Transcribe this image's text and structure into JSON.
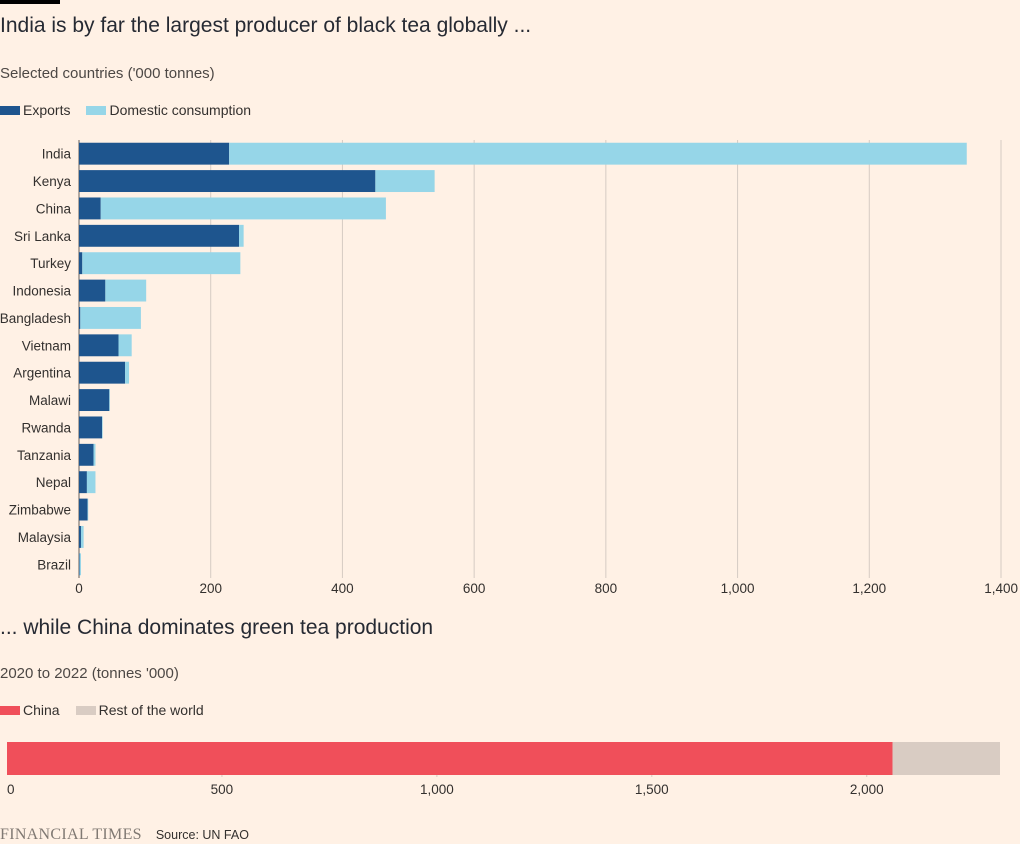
{
  "colors": {
    "exports": "#1e558e",
    "domestic": "#96d6e8",
    "china": "#f04f5a",
    "rest": "#d9ccc3",
    "grid": "#d6cbc3",
    "background": "#fff1e5"
  },
  "chart_data": [
    {
      "type": "bar",
      "orientation": "horizontal",
      "stacked": true,
      "title": "India is by far the largest producer of black tea globally ...",
      "subtitle": "Selected countries ('000 tonnes)",
      "categories": [
        "India",
        "Kenya",
        "China",
        "Sri Lanka",
        "Turkey",
        "Indonesia",
        "Bangladesh",
        "Vietnam",
        "Argentina",
        "Malawi",
        "Rwanda",
        "Tanzania",
        "Nepal",
        "Zimbabwe",
        "Malaysia",
        "Brazil"
      ],
      "series": [
        {
          "name": "Exports",
          "values": [
            228,
            450,
            33,
            243,
            5,
            40,
            2,
            60,
            70,
            46,
            35,
            22,
            12,
            13,
            3,
            1
          ]
        },
        {
          "name": "Domestic consumption",
          "values": [
            1120,
            90,
            433,
            7,
            240,
            62,
            92,
            20,
            6,
            1,
            1,
            3,
            13,
            1,
            4,
            2
          ]
        }
      ],
      "xlim": [
        0,
        1400
      ],
      "xticks": [
        "0",
        "200",
        "400",
        "600",
        "800",
        "1,000",
        "1,200",
        "1,400"
      ],
      "grid": true,
      "legend": "top-left"
    },
    {
      "type": "bar",
      "orientation": "horizontal",
      "stacked": true,
      "title": "... while China dominates green tea production",
      "subtitle": "2020 to 2022 (tonnes '000)",
      "categories": [
        ""
      ],
      "series": [
        {
          "name": "China",
          "values": [
            2060
          ]
        },
        {
          "name": "Rest of the world",
          "values": [
            250
          ]
        }
      ],
      "xlim": [
        0,
        2310
      ],
      "xticks": [
        "0",
        "500",
        "1,000",
        "1,500",
        "2,000"
      ],
      "grid": true,
      "legend": "top-left"
    }
  ],
  "footer": {
    "logo": "FINANCIAL TIMES",
    "source": "Source: UN FAO"
  }
}
